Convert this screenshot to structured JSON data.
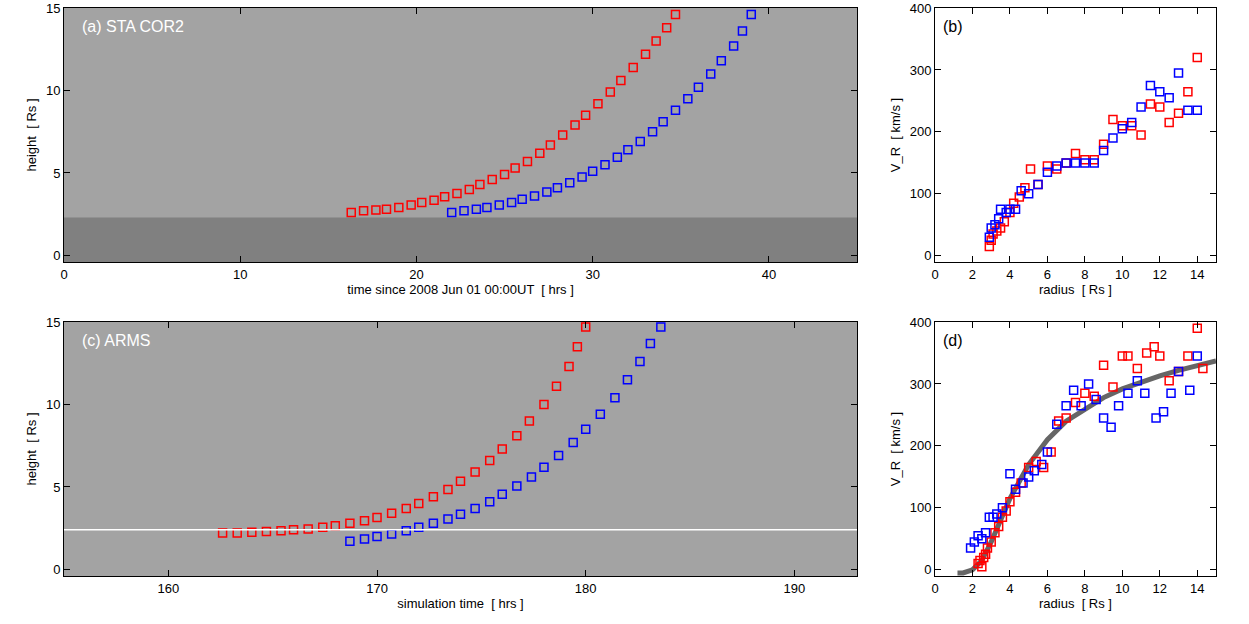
{
  "chart_data": [
    {
      "type": "scatter",
      "title": "(a) STA COR2",
      "xlabel": "time since 2008 Jun 01 00:00UT  [ hrs ]",
      "ylabel": "height  [ Rs ]",
      "xlim": [
        0,
        45
      ],
      "xticks": [
        0,
        10,
        20,
        30,
        40
      ],
      "ylim": [
        -0.4,
        15
      ],
      "yticks": [
        0,
        5,
        10,
        15
      ],
      "occulter_top": 2.3,
      "series": [
        {
          "color": "red",
          "marker": "square-open",
          "x": [
            16.3,
            17,
            17.7,
            18.3,
            19,
            19.7,
            20.3,
            21,
            21.6,
            22.3,
            23,
            23.6,
            24.3,
            25,
            25.6,
            26.3,
            27,
            27.6,
            28.3,
            29,
            29.6,
            30.3,
            31,
            31.6,
            32.3,
            33,
            33.6,
            34.2,
            34.7
          ],
          "values": [
            2.6,
            2.7,
            2.75,
            2.8,
            2.9,
            3.05,
            3.2,
            3.35,
            3.55,
            3.75,
            4.0,
            4.3,
            4.6,
            4.9,
            5.3,
            5.7,
            6.2,
            6.7,
            7.3,
            7.9,
            8.5,
            9.2,
            9.9,
            10.6,
            11.4,
            12.2,
            13.0,
            13.8,
            14.6
          ]
        },
        {
          "color": "blue",
          "marker": "square-open",
          "x": [
            22,
            22.7,
            23.4,
            24,
            24.7,
            25.4,
            26,
            26.7,
            27.4,
            28,
            28.7,
            29.4,
            30,
            30.7,
            31.4,
            32,
            32.7,
            33.4,
            34,
            34.7,
            35.4,
            36,
            36.7,
            37.3,
            38,
            38.5,
            39
          ],
          "values": [
            2.6,
            2.7,
            2.8,
            2.9,
            3.05,
            3.2,
            3.4,
            3.6,
            3.85,
            4.1,
            4.4,
            4.75,
            5.1,
            5.5,
            5.95,
            6.4,
            6.9,
            7.5,
            8.1,
            8.8,
            9.5,
            10.2,
            11.0,
            11.8,
            12.7,
            13.6,
            14.6
          ]
        }
      ]
    },
    {
      "type": "scatter",
      "title": "(b)",
      "xlabel": "radius  [ Rs ]",
      "ylabel": "V_R  [ km/s ]",
      "xlim": [
        0,
        15
      ],
      "xticks": [
        0,
        2,
        4,
        6,
        8,
        10,
        12,
        14
      ],
      "ylim": [
        -10,
        400
      ],
      "yticks": [
        0,
        100,
        200,
        300,
        400
      ],
      "series": [
        {
          "color": "red",
          "marker": "square-open",
          "x": [
            2.9,
            3.0,
            3.1,
            3.3,
            3.5,
            3.7,
            4.0,
            4.2,
            4.5,
            4.8,
            5.1,
            5.5,
            6.0,
            6.5,
            7.0,
            7.5,
            8.0,
            8.5,
            9.0,
            9.5,
            10.0,
            10.5,
            11.0,
            11.5,
            12.0,
            12.5,
            13.0,
            13.5,
            14.0
          ],
          "values": [
            15,
            25,
            35,
            40,
            45,
            55,
            70,
            85,
            95,
            110,
            140,
            115,
            145,
            140,
            150,
            165,
            155,
            155,
            180,
            220,
            210,
            210,
            195,
            245,
            240,
            215,
            230,
            265,
            320
          ]
        },
        {
          "color": "blue",
          "marker": "square-open",
          "x": [
            2.9,
            3.0,
            3.2,
            3.4,
            3.5,
            3.8,
            4.0,
            4.3,
            4.6,
            5.0,
            5.5,
            6.0,
            6.5,
            7.0,
            7.5,
            8.0,
            8.5,
            9.0,
            9.5,
            10.0,
            10.5,
            11.0,
            11.5,
            12.0,
            12.5,
            13.0,
            13.5,
            14.0
          ],
          "values": [
            30,
            45,
            50,
            60,
            75,
            70,
            75,
            75,
            105,
            100,
            115,
            135,
            145,
            150,
            150,
            150,
            150,
            170,
            190,
            205,
            215,
            240,
            275,
            265,
            255,
            295,
            235,
            235
          ]
        }
      ]
    },
    {
      "type": "scatter",
      "title": "(c) ARMS",
      "xlabel": "simulation time  [ hrs ]",
      "ylabel": "height  [ Rs ]",
      "xlim": [
        155,
        193
      ],
      "xticks": [
        160,
        170,
        180,
        190
      ],
      "ylim": [
        -0.4,
        15
      ],
      "yticks": [
        0,
        5,
        10,
        15
      ],
      "reference_height": 2.4,
      "series": [
        {
          "color": "red",
          "marker": "square-open",
          "x": [
            162.6,
            163.3,
            164,
            164.7,
            165.4,
            166,
            166.7,
            167.4,
            168,
            168.7,
            169.4,
            170,
            170.7,
            171.4,
            172,
            172.7,
            173.4,
            174,
            174.7,
            175.4,
            176,
            176.7,
            177.3,
            178,
            178.6,
            179.2,
            179.6,
            180
          ],
          "values": [
            2.2,
            2.2,
            2.25,
            2.3,
            2.35,
            2.4,
            2.45,
            2.55,
            2.65,
            2.8,
            2.95,
            3.15,
            3.4,
            3.7,
            4.0,
            4.4,
            4.85,
            5.35,
            5.9,
            6.6,
            7.3,
            8.1,
            9.0,
            10.0,
            11.1,
            12.3,
            13.5,
            14.7
          ]
        },
        {
          "color": "blue",
          "marker": "square-open",
          "x": [
            168.7,
            169.4,
            170,
            170.7,
            171.4,
            172,
            172.7,
            173.4,
            174,
            174.7,
            175.4,
            176,
            176.7,
            177.4,
            178,
            178.7,
            179.4,
            180,
            180.7,
            181.4,
            182,
            182.6,
            183.1,
            183.6
          ],
          "values": [
            1.7,
            1.85,
            2.0,
            2.15,
            2.35,
            2.55,
            2.8,
            3.05,
            3.35,
            3.7,
            4.1,
            4.55,
            5.05,
            5.6,
            6.2,
            6.9,
            7.7,
            8.5,
            9.4,
            10.4,
            11.5,
            12.6,
            13.7,
            14.7
          ]
        }
      ]
    },
    {
      "type": "scatter",
      "title": "(d)",
      "xlabel": "radius  [ Rs ]",
      "ylabel": "V_R  [ km/s ]",
      "xlim": [
        0,
        15
      ],
      "xticks": [
        0,
        2,
        4,
        6,
        8,
        10,
        12,
        14
      ],
      "ylim": [
        -10,
        400
      ],
      "yticks": [
        0,
        100,
        200,
        300,
        400
      ],
      "series": [
        {
          "type": "line",
          "color": "#666666",
          "line_style": "solid",
          "x": [
            1.2,
            1.5,
            2.0,
            2.5,
            3.0,
            3.5,
            4.0,
            5.0,
            6.0,
            7.0,
            8.0,
            9.0,
            10.0,
            11.0,
            12.0,
            13.0,
            14.0,
            15.0
          ],
          "values": [
            -5,
            -5,
            0,
            15,
            45,
            80,
            115,
            170,
            210,
            240,
            260,
            278,
            292,
            303,
            313,
            322,
            330,
            337
          ]
        },
        {
          "color": "red",
          "marker": "square-open",
          "x": [
            2.3,
            2.4,
            2.5,
            2.6,
            2.7,
            2.8,
            3.0,
            3.2,
            3.4,
            3.6,
            3.8,
            4.0,
            4.3,
            4.6,
            5.0,
            5.4,
            5.8,
            6.2,
            6.6,
            7.0,
            7.5,
            8.0,
            8.5,
            9.0,
            9.5,
            10.0,
            10.3,
            10.8,
            11.3,
            11.7,
            12.0,
            12.5,
            13.0,
            13.5,
            14.0,
            14.3
          ],
          "values": [
            10,
            15,
            5,
            20,
            25,
            35,
            45,
            60,
            70,
            85,
            95,
            110,
            125,
            140,
            165,
            175,
            165,
            190,
            240,
            245,
            270,
            285,
            280,
            330,
            295,
            345,
            345,
            325,
            350,
            360,
            345,
            305,
            320,
            345,
            390,
            325
          ]
        },
        {
          "color": "blue",
          "marker": "square-open",
          "x": [
            1.9,
            2.1,
            2.3,
            2.5,
            2.7,
            2.9,
            3.1,
            3.3,
            3.6,
            4.0,
            4.3,
            4.7,
            5.0,
            5.3,
            5.7,
            6.0,
            6.5,
            7.0,
            7.4,
            7.8,
            8.2,
            8.6,
            9.0,
            9.4,
            9.8,
            10.3,
            10.8,
            11.2,
            11.8,
            12.2,
            12.6,
            13.0,
            13.6,
            14.0
          ],
          "values": [
            35,
            45,
            55,
            50,
            60,
            85,
            85,
            90,
            100,
            155,
            130,
            140,
            150,
            160,
            170,
            190,
            235,
            265,
            290,
            265,
            300,
            275,
            245,
            230,
            265,
            285,
            305,
            285,
            245,
            255,
            285,
            320,
            290,
            345
          ]
        }
      ]
    }
  ]
}
